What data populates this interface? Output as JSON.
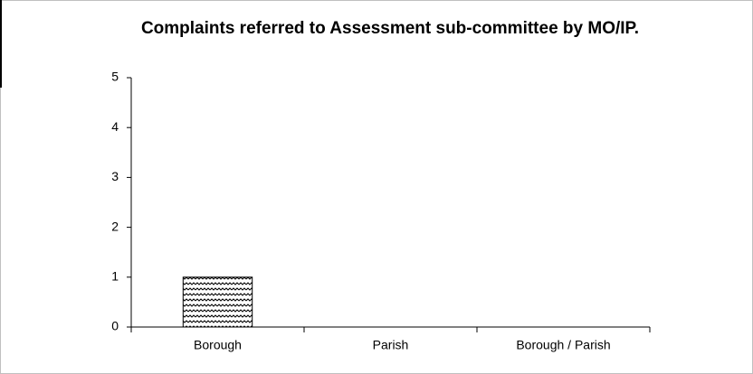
{
  "chart_data": {
    "type": "bar",
    "title": "Complaints referred to Assessment sub-committee by MO/IP.",
    "categories": [
      "Borough",
      "Parish",
      "Borough / Parish"
    ],
    "values": [
      1,
      0,
      0
    ],
    "color": "#000000",
    "ylim": [
      0,
      5
    ],
    "yticks": [
      0,
      1,
      2,
      3,
      4,
      5
    ],
    "grid": false
  }
}
